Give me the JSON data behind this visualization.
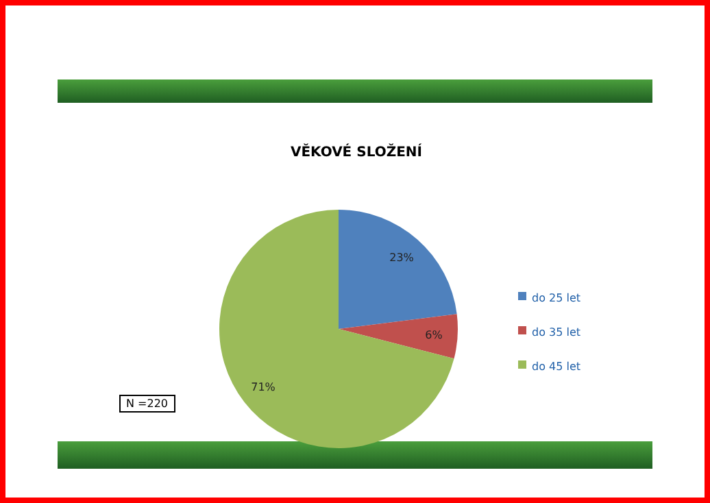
{
  "chart_data": {
    "type": "pie",
    "title": "VĚKOVÉ SLOŽENÍ",
    "categories": [
      "do 25 let",
      "do 35 let",
      "do 45 let"
    ],
    "values": [
      23,
      6,
      71
    ],
    "colors": [
      "#4f81bd",
      "#c0504d",
      "#9bbb59"
    ],
    "value_labels": [
      "23%",
      "6%",
      "71%"
    ],
    "legend": "right",
    "annotations": [
      "N =220"
    ]
  }
}
